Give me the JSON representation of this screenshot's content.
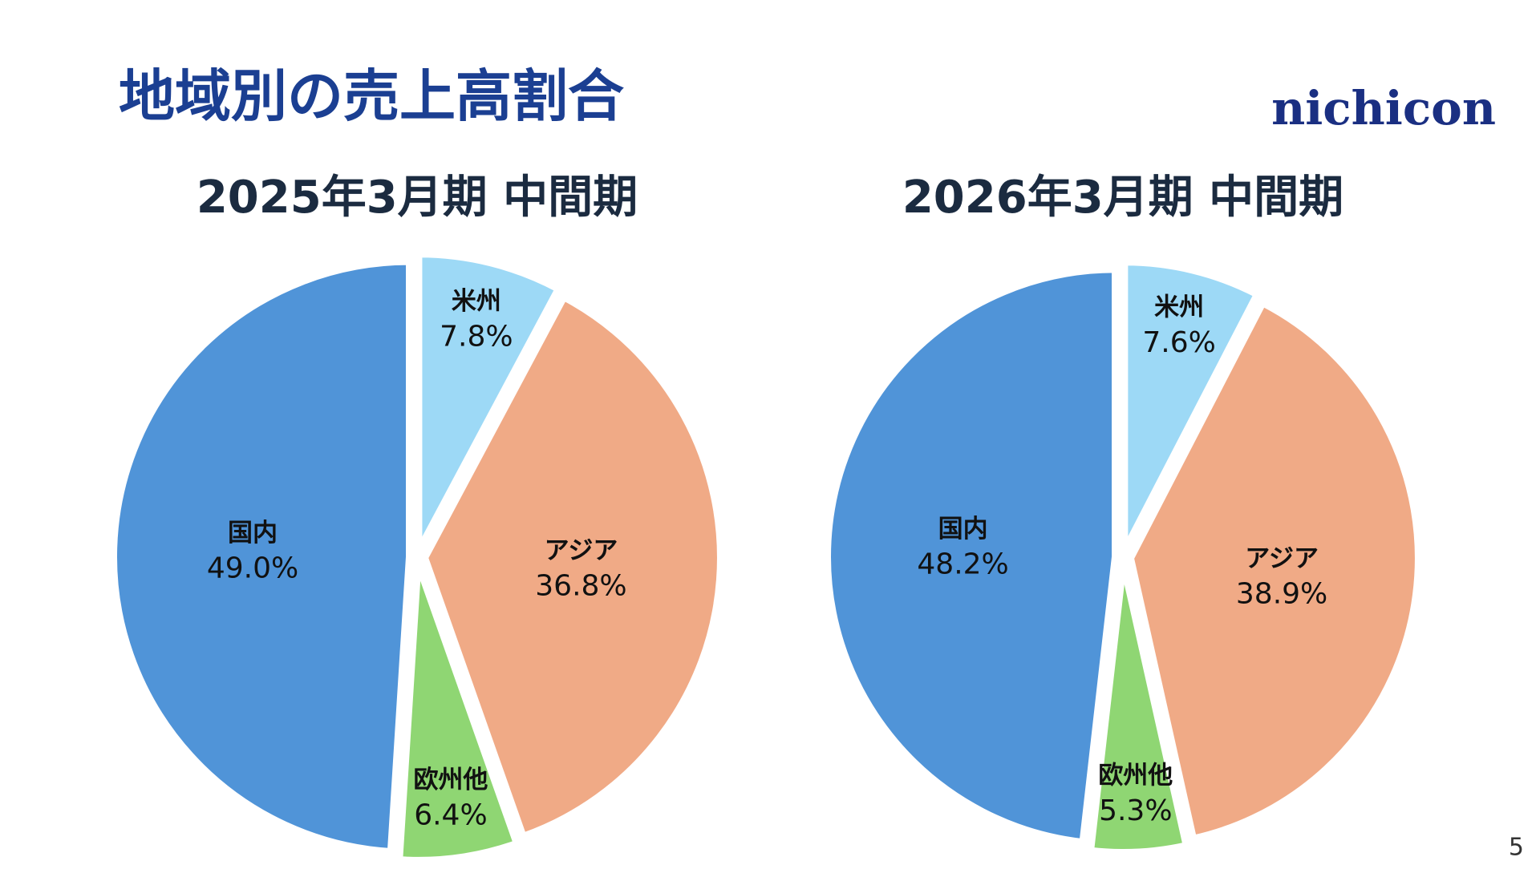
{
  "title": "地域別の売上高割合",
  "logo": "nichicon",
  "page_number": "5",
  "chart_data": [
    {
      "type": "pie",
      "title": "2025年3月期 中間期",
      "categories": [
        "米州",
        "アジア",
        "欧州他",
        "国内"
      ],
      "values": [
        7.8,
        36.8,
        6.4,
        49.0
      ],
      "value_labels": [
        "7.8%",
        "36.8%",
        "6.4%",
        "49.0%"
      ],
      "colors": [
        "#9dd9f6",
        "#f0aa86",
        "#8fd673",
        "#5094d8"
      ]
    },
    {
      "type": "pie",
      "title": "2026年3月期 中間期",
      "categories": [
        "米州",
        "アジア",
        "欧州他",
        "国内"
      ],
      "values": [
        7.6,
        38.9,
        5.3,
        48.2
      ],
      "value_labels": [
        "7.6%",
        "38.9%",
        "5.3%",
        "48.2%"
      ],
      "colors": [
        "#9dd9f6",
        "#f0aa86",
        "#8fd673",
        "#5094d8"
      ]
    }
  ]
}
